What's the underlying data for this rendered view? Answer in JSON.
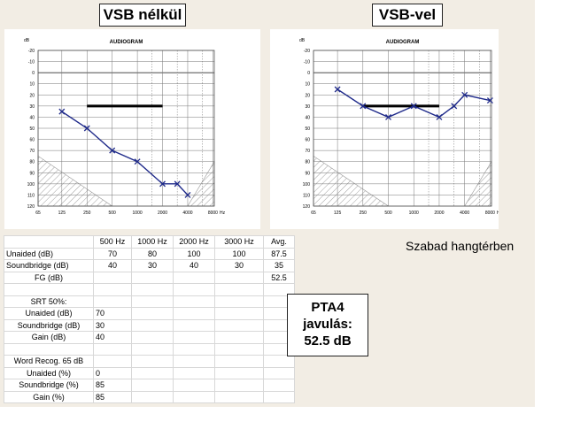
{
  "chart_data": [
    {
      "type": "line",
      "heading": "VSB nélkül",
      "title": "AUDIOGRAM",
      "ylabel": "dB",
      "xlabel": "Hz",
      "x_ticks": [
        "65",
        "125",
        "250",
        "500",
        "1000",
        "2000",
        "4000",
        "8000"
      ],
      "y_ticks": [
        -20,
        -10,
        0,
        10,
        20,
        30,
        40,
        50,
        60,
        70,
        80,
        90,
        100,
        110,
        120
      ],
      "ylim": [
        -20,
        120
      ],
      "y_inverted": true,
      "x_scale": "log",
      "series": [
        {
          "x": [
            125,
            250,
            500,
            1000,
            2000,
            3000,
            4000
          ],
          "y": [
            35,
            50,
            70,
            80,
            100,
            100,
            110
          ],
          "color": "#1f2a8a",
          "marker": "x"
        }
      ],
      "reference_bar": {
        "x": [
          250,
          2000
        ],
        "y": 30
      },
      "hatched_regions": [
        "bottom-left",
        "bottom-right"
      ]
    },
    {
      "type": "line",
      "heading": "VSB-vel",
      "title": "AUDIOGRAM",
      "ylabel": "dB",
      "xlabel": "Hz",
      "x_ticks": [
        "65",
        "125",
        "250",
        "500",
        "1000",
        "2000",
        "4000",
        "8000"
      ],
      "y_ticks": [
        -20,
        -10,
        0,
        10,
        20,
        30,
        40,
        50,
        60,
        70,
        80,
        90,
        100,
        110,
        120
      ],
      "ylim": [
        -20,
        120
      ],
      "y_inverted": true,
      "x_scale": "log",
      "series": [
        {
          "x": [
            125,
            250,
            500,
            1000,
            2000,
            3000,
            4000,
            8000
          ],
          "y": [
            15,
            30,
            40,
            30,
            40,
            30,
            20,
            25
          ],
          "color": "#1f2a8a",
          "marker": "x"
        }
      ],
      "reference_bar": {
        "x": [
          250,
          2000
        ],
        "y": 30
      },
      "hatched_regions": [
        "bottom-left",
        "bottom-right"
      ]
    }
  ],
  "table": {
    "header": [
      "",
      "500 Hz",
      "1000 Hz",
      "2000 Hz",
      "3000 Hz",
      "Avg."
    ],
    "rows": [
      [
        "Unaided (dB)",
        "70",
        "80",
        "100",
        "100",
        "87.5"
      ],
      [
        "Soundbridge (dB)",
        "40",
        "30",
        "40",
        "30",
        "35"
      ],
      [
        "FG (dB)",
        "",
        "",
        "",
        "",
        "52.5"
      ]
    ],
    "srt_title": "SRT 50%:",
    "srt_rows": [
      [
        "Unaided (dB)",
        "70"
      ],
      [
        "Soundbridge (dB)",
        "30"
      ],
      [
        "Gain (dB)",
        "40"
      ]
    ],
    "word_title": "Word Recog. 65 dB",
    "word_rows": [
      [
        "Unaided (%)",
        "0"
      ],
      [
        "Soundbridge (%)",
        "85"
      ],
      [
        "Gain (%)",
        "85"
      ]
    ]
  },
  "caption": "Szabad hangtérben",
  "pta": {
    "line1": "PTA4",
    "line2": "javulás:",
    "line3": "52.5 dB"
  }
}
